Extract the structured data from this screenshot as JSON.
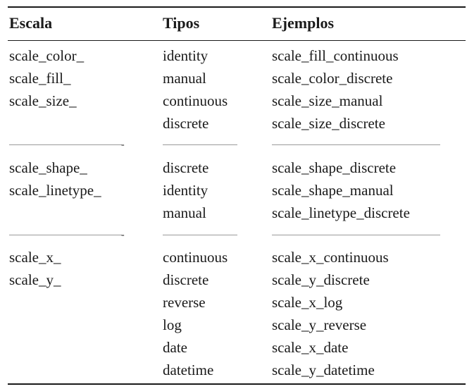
{
  "headers": [
    "Escala",
    "Tipos",
    "Ejemplos"
  ],
  "groups": [
    {
      "escalas": [
        "scale_color_",
        "scale_fill_",
        "scale_size_"
      ],
      "tipos": [
        "identity",
        "manual",
        "continuous",
        "discrete"
      ],
      "ejemplos": [
        "scale_fill_continuous",
        "scale_color_discrete",
        "scale_size_manual",
        "scale_size_discrete"
      ]
    },
    {
      "escalas": [
        "scale_shape_",
        "scale_linetype_"
      ],
      "tipos": [
        "discrete",
        "identity",
        "manual"
      ],
      "ejemplos": [
        "scale_shape_discrete",
        "scale_shape_manual",
        "scale_linetype_discrete"
      ]
    },
    {
      "escalas": [
        "scale_x_",
        "scale_y_"
      ],
      "tipos": [
        "continuous",
        "discrete",
        "reverse",
        "log",
        "date",
        "datetime"
      ],
      "ejemplos": [
        "scale_x_continuous",
        "scale_y_discrete",
        "scale_x_log",
        "scale_y_reverse",
        "scale_x_date",
        "scale_y_datetime"
      ]
    }
  ],
  "separator_mark": "-"
}
